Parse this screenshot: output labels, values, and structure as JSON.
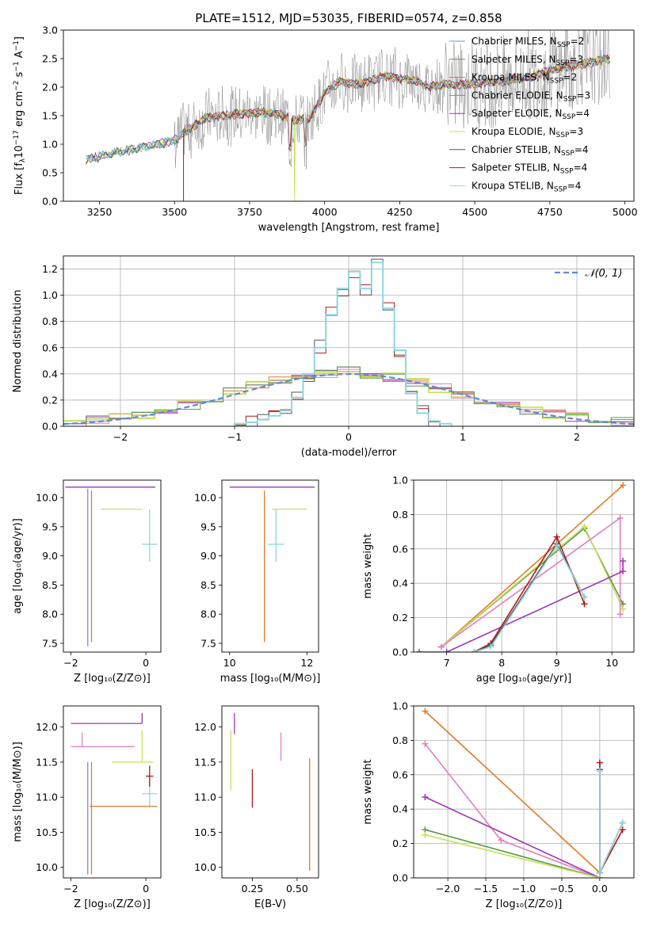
{
  "figure_title": "PLATE=1512, MJD=53035, FIBERID=0574, z=0.858",
  "colors": {
    "chabrier_miles": "#6f8fd8",
    "salpeter_miles": "#5a9a4a",
    "kroupa_miles": "#e07b2a",
    "chabrier_elodie": "#888888",
    "salpeter_elodie": "#9a37b8",
    "kroupa_elodie": "#c6e05a",
    "chabrier_stelib": "#555555",
    "salpeter_stelib": "#b01818",
    "kroupa_stelib": "#8fd6dc",
    "pink": "#e17fbf",
    "gaussian": "#5b8bd6"
  },
  "chart_data": [
    {
      "id": "spectrum",
      "type": "line",
      "title": "PLATE=1512, MJD=53035, FIBERID=0574, z=0.858",
      "xlabel": "wavelength [Angstrom, rest frame]",
      "ylabel": "Flux [f_λ 10^-17 erg cm^-2 s^-1 A^-1]",
      "xlim": [
        3130,
        5030
      ],
      "ylim": [
        0,
        3.0
      ],
      "xticks": [
        3250,
        3500,
        3750,
        4000,
        4250,
        4500,
        4750,
        5000
      ],
      "yticks": [
        0.0,
        0.5,
        1.0,
        1.5,
        2.0,
        2.5,
        3.0
      ],
      "legend_position": "top-right",
      "legend": [
        "Chabrier MILES, N_SSP=2",
        "Salpeter MILES, N_SSP=3",
        "Kroupa MILES, N_SSP=2",
        "Chabrier ELODIE, N_SSP=3",
        "Salpeter ELODIE, N_SSP=4",
        "Kroupa ELODIE, N_SSP=3",
        "Chabrier STELIB, N_SSP=4",
        "Salpeter STELIB, N_SSP=4",
        "Kroupa STELIB, N_SSP=4"
      ],
      "continuum": {
        "x": [
          3205,
          3250,
          3300,
          3350,
          3400,
          3450,
          3500,
          3550,
          3600,
          3650,
          3700,
          3750,
          3800,
          3850,
          3900,
          3950,
          4000,
          4050,
          4100,
          4150,
          4200,
          4250,
          4300,
          4350,
          4400,
          4450,
          4500,
          4550,
          4600,
          4650,
          4700,
          4750,
          4800,
          4850,
          4900,
          4950
        ],
        "y": [
          0.72,
          0.78,
          0.85,
          0.9,
          0.95,
          1.0,
          1.07,
          1.27,
          1.45,
          1.5,
          1.52,
          1.55,
          1.55,
          1.52,
          1.42,
          1.45,
          1.9,
          2.1,
          2.05,
          2.1,
          2.2,
          2.15,
          2.12,
          2.0,
          2.05,
          2.05,
          2.05,
          2.1,
          2.1,
          2.15,
          2.2,
          2.3,
          2.35,
          2.4,
          2.45,
          2.5
        ]
      }
    },
    {
      "id": "residuals",
      "type": "line",
      "xlabel": "(data-model)/error",
      "ylabel": "Normed distribution",
      "xlim": [
        -2.5,
        2.5
      ],
      "ylim": [
        0,
        1.3
      ],
      "xticks": [
        -2,
        -1,
        0,
        1,
        2
      ],
      "yticks": [
        0.0,
        0.2,
        0.4,
        0.6,
        0.8,
        1.0,
        1.2
      ],
      "grid": true,
      "legend_position": "top-right",
      "legend": [
        "N(0,1)"
      ],
      "narrow_hist": {
        "bin_left": [
          -1.0,
          -0.9,
          -0.8,
          -0.7,
          -0.6,
          -0.5,
          -0.4,
          -0.3,
          -0.2,
          -0.1,
          0.0,
          0.1,
          0.2,
          0.3,
          0.4,
          0.5,
          0.6,
          0.7,
          0.8
        ],
        "heights": [
          0.02,
          0.03,
          0.05,
          0.08,
          0.12,
          0.22,
          0.4,
          0.6,
          0.85,
          1.05,
          1.18,
          1.05,
          1.25,
          0.9,
          0.58,
          0.25,
          0.1,
          0.04,
          0.02
        ]
      },
      "wide_hist": {
        "bin_left": [
          -2.5,
          -2.3,
          -2.1,
          -1.9,
          -1.7,
          -1.5,
          -1.3,
          -1.1,
          -0.9,
          -0.7,
          -0.5,
          -0.3,
          -0.1,
          0.1,
          0.3,
          0.5,
          0.7,
          0.9,
          1.1,
          1.3,
          1.5,
          1.7,
          1.9,
          2.1,
          2.3
        ],
        "heights": [
          0.03,
          0.05,
          0.07,
          0.09,
          0.12,
          0.16,
          0.21,
          0.26,
          0.32,
          0.36,
          0.38,
          0.4,
          0.42,
          0.4,
          0.37,
          0.33,
          0.29,
          0.24,
          0.2,
          0.16,
          0.12,
          0.09,
          0.07,
          0.05,
          0.04
        ]
      }
    },
    {
      "id": "age_vs_Z",
      "type": "scatter",
      "xlabel": "Z [log10(Z/Z⊙)]",
      "ylabel": "age  [log10(age/yr)]",
      "xlim": [
        -2.2,
        0.4
      ],
      "ylim": [
        7.35,
        10.3
      ],
      "xticks": [
        -2,
        0
      ],
      "yticks": [
        7.5,
        8.0,
        8.5,
        9.0,
        9.5,
        10.0
      ],
      "points": [
        {
          "x": -0.05,
          "y": 10.18,
          "xerr": [
            2.1,
            0.3
          ],
          "yerr": [
            0.0,
            0.0
          ],
          "series": "salpeter_elodie"
        },
        {
          "x": -1.55,
          "y": 10.15,
          "xerr": [
            0.0,
            0.0
          ],
          "yerr": [
            2.7,
            0.0
          ],
          "series": "chabrier_miles"
        },
        {
          "x": -1.45,
          "y": 10.12,
          "xerr": [
            0.0,
            0.0
          ],
          "yerr": [
            2.6,
            0.0
          ],
          "series": "kroupa_miles"
        },
        {
          "x": -0.5,
          "y": 9.8,
          "xerr": [
            0.7,
            0.4
          ],
          "yerr": [
            0.0,
            0.0
          ],
          "series": "kroupa_elodie"
        },
        {
          "x": 0.1,
          "y": 9.2,
          "xerr": [
            0.2,
            0.2
          ],
          "yerr": [
            0.3,
            0.6
          ],
          "series": "kroupa_stelib"
        }
      ]
    },
    {
      "id": "age_vs_mass",
      "type": "scatter",
      "xlabel": "mass [log10(M/M⊙)]",
      "ylabel": "",
      "xlim": [
        9.8,
        12.3
      ],
      "ylim": [
        7.35,
        10.3
      ],
      "xticks": [
        10,
        12
      ],
      "yticks": [
        7.5,
        8.0,
        8.5,
        9.0,
        9.5,
        10.0
      ],
      "points": [
        {
          "x": 10.9,
          "y": 10.18,
          "xerr": [
            0.9,
            1.3
          ],
          "yerr": [
            0.0,
            0.0
          ],
          "series": "salpeter_elodie"
        },
        {
          "x": 10.9,
          "y": 10.12,
          "xerr": [
            0.0,
            0.0
          ],
          "yerr": [
            2.6,
            0.0
          ],
          "series": "kroupa_miles"
        },
        {
          "x": 11.2,
          "y": 9.8,
          "xerr": [
            0.1,
            0.8
          ],
          "yerr": [
            0.0,
            0.0
          ],
          "series": "kroupa_elodie"
        },
        {
          "x": 11.2,
          "y": 9.2,
          "xerr": [
            0.2,
            0.2
          ],
          "yerr": [
            0.3,
            0.6
          ],
          "series": "kroupa_stelib"
        }
      ]
    },
    {
      "id": "weight_vs_age",
      "type": "line",
      "xlabel": "age  [log10(age/yr)]",
      "ylabel": "mass weight",
      "xlim": [
        6.4,
        10.4
      ],
      "ylim": [
        0,
        1.0
      ],
      "xticks": [
        7,
        8,
        9,
        10
      ],
      "yticks": [
        0.0,
        0.2,
        0.4,
        0.6,
        0.8,
        1.0
      ],
      "grid": true,
      "series": [
        {
          "color_key": "kroupa_miles",
          "x": [
            6.9,
            10.2
          ],
          "y": [
            0.03,
            0.97
          ]
        },
        {
          "color_key": "salpeter_miles",
          "x": [
            6.9,
            9.5,
            10.2
          ],
          "y": [
            0.03,
            0.72,
            0.28
          ]
        },
        {
          "color_key": "kroupa_elodie",
          "x": [
            6.9,
            9.5,
            10.2
          ],
          "y": [
            0.03,
            0.73,
            0.25
          ]
        },
        {
          "color_key": "pink",
          "x": [
            6.9,
            10.15,
            10.15
          ],
          "y": [
            0.03,
            0.78,
            0.22
          ]
        },
        {
          "color_key": "salpeter_elodie",
          "x": [
            6.5,
            7.0,
            10.2,
            10.2
          ],
          "y": [
            0.0,
            0.0,
            0.47,
            0.53
          ]
        },
        {
          "color_key": "salpeter_stelib",
          "x": [
            7.5,
            7.8,
            9.0,
            9.5
          ],
          "y": [
            0.0,
            0.05,
            0.67,
            0.28
          ]
        },
        {
          "color_key": "chabrier_stelib",
          "x": [
            7.5,
            7.8,
            9.0,
            9.5
          ],
          "y": [
            0.0,
            0.04,
            0.63,
            0.32
          ]
        },
        {
          "color_key": "kroupa_stelib",
          "x": [
            7.5,
            7.8,
            9.0,
            9.5
          ],
          "y": [
            0.0,
            0.03,
            0.62,
            0.32
          ]
        }
      ]
    },
    {
      "id": "mass_vs_Z",
      "type": "scatter",
      "xlabel": "Z [log10(Z/Z⊙)]",
      "ylabel": "mass [log10(M/M⊙)]",
      "xlim": [
        -2.2,
        0.4
      ],
      "ylim": [
        9.85,
        12.3
      ],
      "xticks": [
        -2,
        0
      ],
      "yticks": [
        10.0,
        10.5,
        11.0,
        11.5,
        12.0
      ],
      "points": [
        {
          "x": -0.1,
          "y": 12.05,
          "xerr": [
            1.9,
            0.0
          ],
          "yerr": [
            0.0,
            0.15
          ],
          "series": "salpeter_elodie"
        },
        {
          "x": -1.7,
          "y": 11.72,
          "xerr": [
            0.3,
            1.4
          ],
          "yerr": [
            0.0,
            0.2
          ],
          "series": "pink"
        },
        {
          "x": -1.55,
          "y": 11.5,
          "xerr": [
            0.0,
            0.0
          ],
          "yerr": [
            1.6,
            0.0
          ],
          "series": "chabrier_miles"
        },
        {
          "x": -1.45,
          "y": 11.5,
          "xerr": [
            0.0,
            0.0
          ],
          "yerr": [
            1.6,
            0.0
          ],
          "series": "kroupa_miles"
        },
        {
          "x": -0.1,
          "y": 11.5,
          "xerr": [
            0.8,
            0.3
          ],
          "yerr": [
            0.0,
            0.45
          ],
          "series": "kroupa_elodie"
        },
        {
          "x": -1.5,
          "y": 10.87,
          "xerr": [
            0.0,
            1.8
          ],
          "yerr": [
            0.0,
            0.0
          ],
          "series": "kroupa_miles"
        },
        {
          "x": 0.1,
          "y": 11.05,
          "xerr": [
            0.2,
            0.2
          ],
          "yerr": [
            0.2,
            0.2
          ],
          "series": "kroupa_stelib"
        },
        {
          "x": 0.1,
          "y": 11.3,
          "xerr": [
            0.1,
            0.1
          ],
          "yerr": [
            0.15,
            0.15
          ],
          "series": "salpeter_stelib"
        }
      ]
    },
    {
      "id": "mass_vs_EBV",
      "type": "scatter",
      "xlabel": "E(B-V)",
      "ylabel": "",
      "xlim": [
        0.08,
        0.62
      ],
      "ylim": [
        9.85,
        12.3
      ],
      "xticks": [
        0.25,
        0.5
      ],
      "yticks": [
        10.0,
        10.5,
        11.0,
        11.5,
        12.0
      ],
      "points": [
        {
          "x": 0.13,
          "y": 11.55,
          "xerr": [
            0,
            0
          ],
          "yerr": [
            0.45,
            0.4
          ],
          "series": "kroupa_elodie"
        },
        {
          "x": 0.15,
          "y": 12.05,
          "xerr": [
            0,
            0
          ],
          "yerr": [
            0.15,
            0.15
          ],
          "series": "salpeter_elodie"
        },
        {
          "x": 0.25,
          "y": 11.1,
          "xerr": [
            0,
            0
          ],
          "yerr": [
            0.25,
            0.3
          ],
          "series": "salpeter_stelib"
        },
        {
          "x": 0.41,
          "y": 11.72,
          "xerr": [
            0,
            0
          ],
          "yerr": [
            0.2,
            0.2
          ],
          "series": "pink"
        },
        {
          "x": 0.57,
          "y": 10.75,
          "xerr": [
            0,
            0
          ],
          "yerr": [
            0.8,
            0.8
          ],
          "series": "kroupa_miles"
        }
      ]
    },
    {
      "id": "weight_vs_Z",
      "type": "line",
      "xlabel": "Z [log10(Z/Z⊙)]",
      "ylabel": "mass weight",
      "xlim": [
        -2.45,
        0.45
      ],
      "ylim": [
        0,
        1.0
      ],
      "xticks": [
        -2.0,
        -1.5,
        -1.0,
        -0.5,
        0.0
      ],
      "yticks": [
        0.0,
        0.2,
        0.4,
        0.6,
        0.8,
        1.0
      ],
      "grid": true,
      "series": [
        {
          "color_key": "kroupa_miles",
          "x": [
            -2.3,
            0.0
          ],
          "y": [
            0.97,
            0.03
          ]
        },
        {
          "color_key": "pink",
          "x": [
            -2.3,
            -1.3,
            0.0
          ],
          "y": [
            0.78,
            0.22,
            0.0
          ]
        },
        {
          "color_key": "salpeter_elodie",
          "x": [
            -2.3,
            0.0
          ],
          "y": [
            0.47,
            0.0
          ]
        },
        {
          "color_key": "salpeter_miles",
          "x": [
            -2.3,
            0.0
          ],
          "y": [
            0.28,
            0.0
          ]
        },
        {
          "color_key": "kroupa_elodie",
          "x": [
            -2.3,
            0.0
          ],
          "y": [
            0.25,
            0.0
          ]
        },
        {
          "color_key": "salpeter_stelib",
          "x": [
            0.0,
            0.0,
            0.3
          ],
          "y": [
            0.67,
            0.03,
            0.28
          ]
        },
        {
          "color_key": "chabrier_stelib",
          "x": [
            0.0,
            0.0,
            0.3
          ],
          "y": [
            0.63,
            0.03,
            0.32
          ]
        },
        {
          "color_key": "kroupa_stelib",
          "x": [
            0.0,
            0.0,
            0.3
          ],
          "y": [
            0.62,
            0.03,
            0.32
          ]
        }
      ]
    }
  ]
}
